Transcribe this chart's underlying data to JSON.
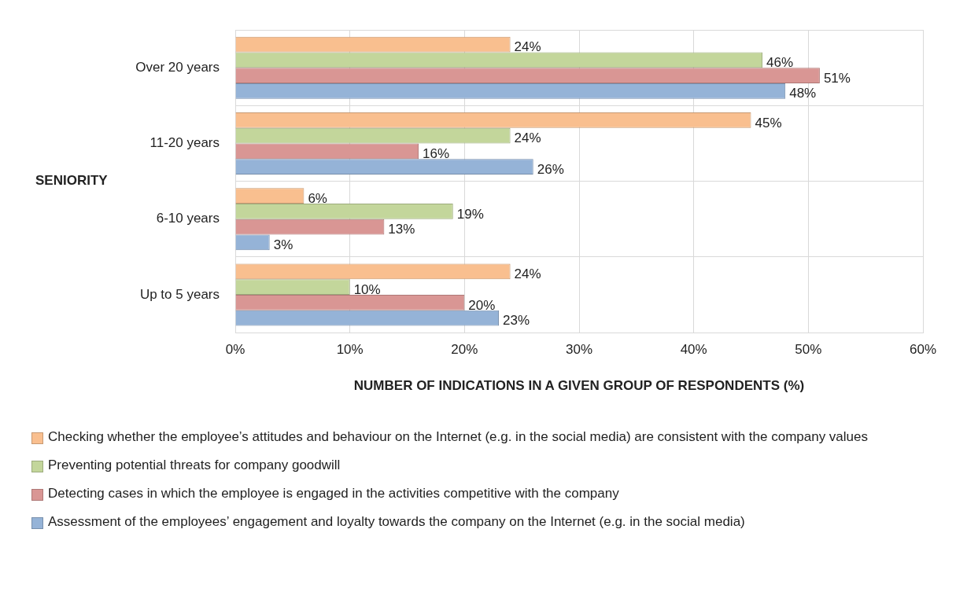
{
  "chart_data": {
    "type": "bar",
    "orientation": "horizontal",
    "ylabel": "SENIORITY",
    "xlabel": "NUMBER OF INDICATIONS IN A GIVEN GROUP OF RESPONDENTS (%)",
    "categories": [
      "Over 20 years",
      "11-20 years",
      "6-10 years",
      "Up to 5 years"
    ],
    "series": [
      {
        "name": "Checking whether the employee’s attitudes and behaviour on the Internet (e.g. in the social media) are consistent with the company values",
        "color": "#f9bf8f",
        "values": [
          24,
          45,
          6,
          24
        ],
        "value_labels": [
          "24%",
          "45%",
          "6%",
          "24%"
        ]
      },
      {
        "name": "Preventing potential threats for company goodwill",
        "color": "#c3d69b",
        "values": [
          46,
          24,
          19,
          10
        ],
        "value_labels": [
          "46%",
          "24%",
          "19%",
          "10%"
        ]
      },
      {
        "name": "Detecting cases in which the employee is engaged in the activities competitive with the company",
        "color": "#d99694",
        "values": [
          51,
          16,
          13,
          20
        ],
        "value_labels": [
          "51%",
          "16%",
          "13%",
          "20%"
        ]
      },
      {
        "name": "Assessment of the employees’ engagement and loyalty towards the company on the Internet (e.g. in the social media)",
        "color": "#95b3d7",
        "values": [
          48,
          26,
          3,
          23
        ],
        "value_labels": [
          "48%",
          "26%",
          "3%",
          "23%"
        ]
      }
    ],
    "xlim": [
      0,
      60
    ],
    "xticks": [
      {
        "value": 0,
        "label": "0%"
      },
      {
        "value": 10,
        "label": "10%"
      },
      {
        "value": 20,
        "label": "20%"
      },
      {
        "value": 30,
        "label": "30%"
      },
      {
        "value": 40,
        "label": "40%"
      },
      {
        "value": 50,
        "label": "50%"
      },
      {
        "value": 60,
        "label": "60%"
      }
    ],
    "grid": true,
    "legend": "bottom"
  }
}
